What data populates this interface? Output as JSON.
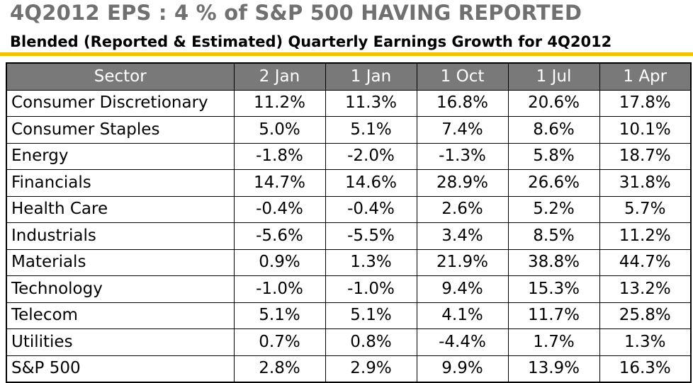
{
  "title": "4Q2012 EPS : 4 % of S&P 500 HAVING REPORTED",
  "subtitle": "Blended (Reported & Estimated) Quarterly Earnings Growth for 4Q2012",
  "colors": {
    "header_bg": "#797979",
    "rule": "#f2c200",
    "title": "#707070"
  },
  "chart_data": {
    "type": "table",
    "columns": [
      "Sector",
      "2 Jan",
      "1 Jan",
      "1 Oct",
      "1 Jul",
      "1 Apr"
    ],
    "rows": [
      [
        "Consumer Discretionary",
        "11.2%",
        "11.3%",
        "16.8%",
        "20.6%",
        "17.8%"
      ],
      [
        "Consumer Staples",
        "5.0%",
        "5.1%",
        "7.4%",
        "8.6%",
        "10.1%"
      ],
      [
        "Energy",
        "-1.8%",
        "-2.0%",
        "-1.3%",
        "5.8%",
        "18.7%"
      ],
      [
        "Financials",
        "14.7%",
        "14.6%",
        "28.9%",
        "26.6%",
        "31.8%"
      ],
      [
        "Health Care",
        "-0.4%",
        "-0.4%",
        "2.6%",
        "5.2%",
        "5.7%"
      ],
      [
        "Industrials",
        "-5.6%",
        "-5.5%",
        "3.4%",
        "8.5%",
        "11.2%"
      ],
      [
        "Materials",
        "0.9%",
        "1.3%",
        "21.9%",
        "38.8%",
        "44.7%"
      ],
      [
        "Technology",
        "-1.0%",
        "-1.0%",
        "9.4%",
        "15.3%",
        "13.2%"
      ],
      [
        "Telecom",
        "5.1%",
        "5.1%",
        "4.1%",
        "11.7%",
        "25.8%"
      ],
      [
        "Utilities",
        "0.7%",
        "0.8%",
        "-4.4%",
        "1.7%",
        "1.3%"
      ],
      [
        "S&P 500",
        "2.8%",
        "2.9%",
        "9.9%",
        "13.9%",
        "16.3%"
      ]
    ]
  }
}
